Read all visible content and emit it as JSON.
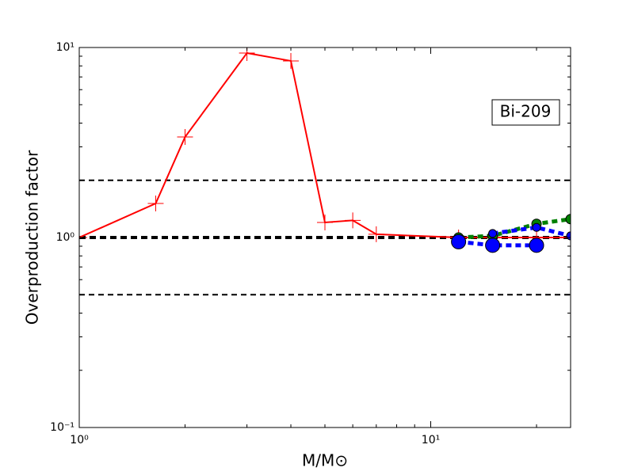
{
  "chart_data": {
    "type": "line",
    "xlabel": "M/M⊙",
    "ylabel": "Overproduction factor",
    "annotation": "Bi-209",
    "log_x": true,
    "log_y": true,
    "xlim": [
      1,
      25
    ],
    "ylim": [
      0.1,
      10
    ],
    "xticks": [
      {
        "value": 1,
        "label": "10⁰"
      },
      {
        "value": 10,
        "label": "10¹"
      }
    ],
    "yticks": [
      {
        "value": 0.1,
        "label": "10⁻¹"
      },
      {
        "value": 1,
        "label": "10⁰"
      },
      {
        "value": 10,
        "label": "10¹"
      }
    ],
    "xminorticks": [
      2,
      3,
      4,
      5,
      6,
      7,
      8,
      9,
      20
    ],
    "yminorticks": [
      0.2,
      0.3,
      0.4,
      0.5,
      0.6,
      0.7,
      0.8,
      0.9,
      2,
      3,
      4,
      5,
      6,
      7,
      8,
      9
    ],
    "hlines": [
      0.5,
      1,
      2
    ],
    "series": [
      {
        "color": "#ff0000",
        "style": "solid",
        "marker": "plus",
        "x": [
          1,
          1.65,
          2,
          3,
          4,
          5,
          6,
          7,
          12,
          15,
          20,
          25
        ],
        "values": [
          1.0,
          1.51,
          3.38,
          9.35,
          8.5,
          1.2,
          1.23,
          1.04,
          1.0,
          1.0,
          1.0,
          1.0
        ]
      },
      {
        "color": "#008000",
        "style": "dotted",
        "marker": "circle",
        "marker_size": 6,
        "x": [
          12,
          15,
          20,
          25
        ],
        "values": [
          1.0,
          1.02,
          1.18,
          1.25
        ]
      },
      {
        "color": "#0000ff",
        "style": "dotted",
        "marker": "circle",
        "marker_size": 5,
        "x": [
          15,
          20,
          25
        ],
        "values": [
          1.05,
          1.13,
          1.02
        ]
      },
      {
        "color": "#0000ff",
        "style": "dotted",
        "marker": "circle",
        "marker_size": 9,
        "x": [
          12,
          15,
          20
        ],
        "values": [
          0.95,
          0.91,
          0.91
        ]
      }
    ]
  }
}
